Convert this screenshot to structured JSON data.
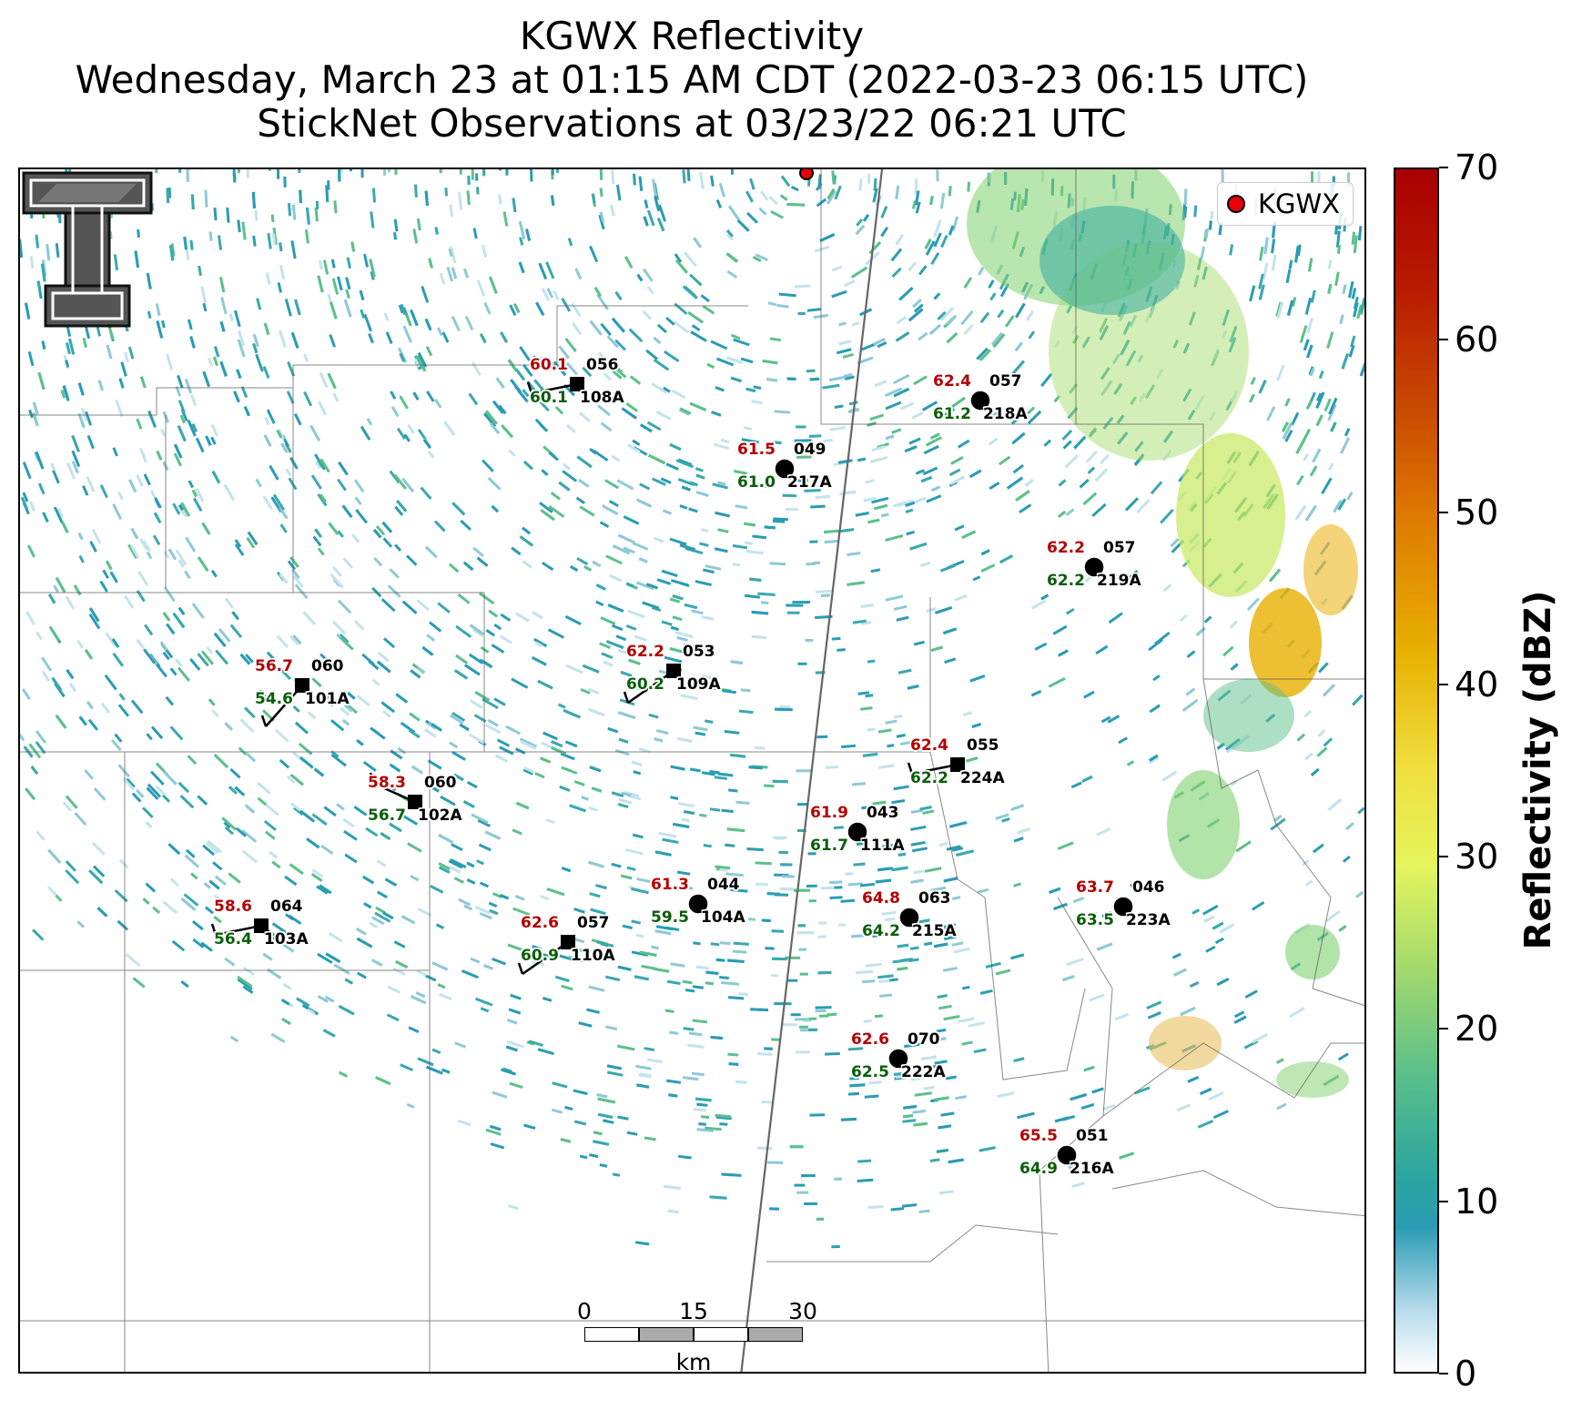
{
  "title": {
    "line1": "KGWX Reflectivity",
    "line2": "Wednesday, March 23 at 01:15 AM CDT (2022-03-23 06:15 UTC)",
    "line3": "StickNet Observations at 03/23/22 06:21 UTC"
  },
  "legend": {
    "label": "KGWX",
    "color": "#e8000b"
  },
  "colorbar": {
    "label": "Reflectivity (dBZ)",
    "ticks": [
      "0",
      "10",
      "20",
      "30",
      "40",
      "50",
      "60",
      "70"
    ],
    "range": [
      0,
      70
    ]
  },
  "scalebar": {
    "ticks": [
      "0",
      "15",
      "30"
    ],
    "unit": "km"
  },
  "stations": [
    {
      "id": "108A",
      "temp": "60.1",
      "dew": "60.1",
      "pres": "056",
      "marker": "square",
      "barb": "left"
    },
    {
      "id": "218A",
      "temp": "62.4",
      "dew": "61.2",
      "pres": "057",
      "marker": "circle",
      "barb": "none"
    },
    {
      "id": "217A",
      "temp": "61.5",
      "dew": "61.0",
      "pres": "049",
      "marker": "circle",
      "barb": "none"
    },
    {
      "id": "219A",
      "temp": "62.2",
      "dew": "62.2",
      "pres": "057",
      "marker": "circle",
      "barb": "none"
    },
    {
      "id": "109A",
      "temp": "62.2",
      "dew": "60.2",
      "pres": "053",
      "marker": "square",
      "barb": "sw"
    },
    {
      "id": "101A",
      "temp": "56.7",
      "dew": "54.6",
      "pres": "060",
      "marker": "square",
      "barb": "ssw"
    },
    {
      "id": "224A",
      "temp": "62.4",
      "dew": "62.2",
      "pres": "055",
      "marker": "square",
      "barb": "left"
    },
    {
      "id": "102A",
      "temp": "58.3",
      "dew": "56.7",
      "pres": "060",
      "marker": "square",
      "barb": "nw"
    },
    {
      "id": "111A",
      "temp": "61.9",
      "dew": "61.7",
      "pres": "043",
      "marker": "circle",
      "barb": "none"
    },
    {
      "id": "104A",
      "temp": "61.3",
      "dew": "59.5",
      "pres": "044",
      "marker": "circle",
      "barb": "none"
    },
    {
      "id": "215A",
      "temp": "64.8",
      "dew": "64.2",
      "pres": "063",
      "marker": "circle",
      "barb": "none"
    },
    {
      "id": "223A",
      "temp": "63.7",
      "dew": "63.5",
      "pres": "046",
      "marker": "circle",
      "barb": "none"
    },
    {
      "id": "103A",
      "temp": "58.6",
      "dew": "56.4",
      "pres": "064",
      "marker": "square",
      "barb": "left"
    },
    {
      "id": "110A",
      "temp": "62.6",
      "dew": "60.9",
      "pres": "057",
      "marker": "square",
      "barb": "sw"
    },
    {
      "id": "222A",
      "temp": "62.6",
      "dew": "62.5",
      "pres": "070",
      "marker": "circle",
      "barb": "none"
    },
    {
      "id": "216A",
      "temp": "65.5",
      "dew": "64.9",
      "pres": "051",
      "marker": "circle",
      "barb": "none"
    }
  ],
  "colors": {
    "temp": "#b30000",
    "dew": "#0a5e0a",
    "radar_low": "#2a9cb4",
    "radar_mid": "#7fd06e",
    "radar_high": "#e8e84c"
  }
}
